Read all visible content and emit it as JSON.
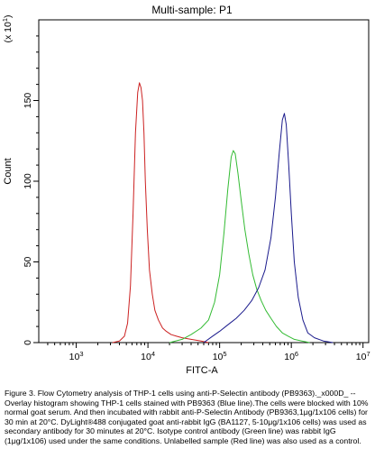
{
  "chart_data": {
    "type": "line",
    "title": "Multi-sample: P1",
    "xlabel": "FITC-A",
    "ylabel": "Count",
    "y_multiplier_label": "(x 10",
    "y_multiplier_exp": "1",
    "y_multiplier_close": ")",
    "x_scale": "log",
    "xlim": [
      300,
      12000000
    ],
    "ylim": [
      0,
      200
    ],
    "grid": false,
    "x_ticks": [
      {
        "value": 1000,
        "base": "10",
        "exp": "3"
      },
      {
        "value": 10000,
        "base": "10",
        "exp": "4"
      },
      {
        "value": 100000,
        "base": "10",
        "exp": "5"
      },
      {
        "value": 1000000,
        "base": "10",
        "exp": "6"
      },
      {
        "value": 10000000,
        "base": "10",
        "exp": "7"
      }
    ],
    "y_ticks": [
      {
        "value": 0,
        "label": "0"
      },
      {
        "value": 50,
        "label": "50"
      },
      {
        "value": 100,
        "label": "100"
      },
      {
        "value": 150,
        "label": "150"
      }
    ],
    "series": [
      {
        "color": "#cc2222",
        "points": [
          [
            3200,
            0
          ],
          [
            4000,
            1
          ],
          [
            4700,
            4
          ],
          [
            5200,
            12
          ],
          [
            5700,
            35
          ],
          [
            6200,
            80
          ],
          [
            6700,
            130
          ],
          [
            7200,
            155
          ],
          [
            7600,
            161
          ],
          [
            8000,
            158
          ],
          [
            8400,
            150
          ],
          [
            8800,
            130
          ],
          [
            9200,
            100
          ],
          [
            9800,
            70
          ],
          [
            10500,
            45
          ],
          [
            11500,
            30
          ],
          [
            12500,
            20
          ],
          [
            14000,
            14
          ],
          [
            16000,
            9
          ],
          [
            18000,
            7
          ],
          [
            21000,
            5
          ],
          [
            25000,
            4
          ],
          [
            30000,
            3
          ],
          [
            40000,
            2
          ],
          [
            55000,
            1
          ],
          [
            70000,
            0
          ]
        ]
      },
      {
        "color": "#33bb33",
        "points": [
          [
            20000,
            0
          ],
          [
            30000,
            2
          ],
          [
            40000,
            5
          ],
          [
            55000,
            9
          ],
          [
            70000,
            14
          ],
          [
            85000,
            25
          ],
          [
            100000,
            42
          ],
          [
            115000,
            68
          ],
          [
            130000,
            95
          ],
          [
            145000,
            115
          ],
          [
            155000,
            119
          ],
          [
            165000,
            117
          ],
          [
            180000,
            105
          ],
          [
            200000,
            88
          ],
          [
            225000,
            70
          ],
          [
            255000,
            55
          ],
          [
            290000,
            42
          ],
          [
            330000,
            33
          ],
          [
            380000,
            26
          ],
          [
            440000,
            20
          ],
          [
            520000,
            15
          ],
          [
            620000,
            10
          ],
          [
            750000,
            6
          ],
          [
            900000,
            4
          ],
          [
            1100000,
            2
          ],
          [
            1400000,
            1
          ],
          [
            1800000,
            0
          ]
        ]
      },
      {
        "color": "#1a1a8c",
        "points": [
          [
            60000,
            0
          ],
          [
            80000,
            4
          ],
          [
            100000,
            7
          ],
          [
            130000,
            11
          ],
          [
            170000,
            15
          ],
          [
            220000,
            20
          ],
          [
            280000,
            26
          ],
          [
            350000,
            34
          ],
          [
            430000,
            45
          ],
          [
            520000,
            65
          ],
          [
            600000,
            90
          ],
          [
            680000,
            118
          ],
          [
            750000,
            138
          ],
          [
            800000,
            142
          ],
          [
            850000,
            135
          ],
          [
            920000,
            110
          ],
          [
            1000000,
            80
          ],
          [
            1100000,
            50
          ],
          [
            1250000,
            28
          ],
          [
            1450000,
            14
          ],
          [
            1700000,
            6
          ],
          [
            2100000,
            3
          ],
          [
            2800000,
            1
          ],
          [
            3800000,
            0
          ]
        ]
      }
    ]
  },
  "caption": {
    "text": "Figure 3. Flow Cytometry analysis of THP-1 cells using anti-P-Selectin antibody (PB9363)._x000D_ -- Overlay histogram showing THP-1 cells stained with PB9363 (Blue line).The cells were blocked with 10% normal goat serum. And then incubated with rabbit anti-P-Selectin Antibody (PB9363,1μg/1x106 cells) for 30 min at 20°C. DyLight®488 conjugated goat anti-rabbit IgG (BA1127, 5-10μg/1x106 cells) was used as secondary antibody for 30 minutes at 20°C. Isotype control antibody (Green line) was rabbit IgG (1μg/1x106) used under the same conditions. Unlabelled sample (Red line) was also used as a control."
  }
}
